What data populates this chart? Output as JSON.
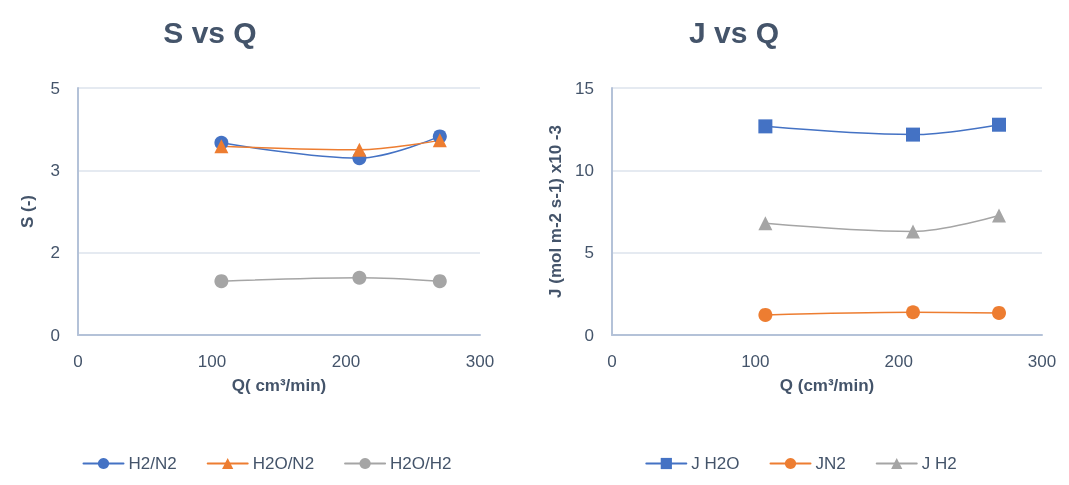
{
  "chart_data": [
    {
      "type": "line",
      "title": "S vs Q",
      "xlabel": "Q( cm³/min)",
      "ylabel": "S (-)",
      "xlim": [
        0,
        300
      ],
      "xticks": [
        0,
        100,
        200,
        300
      ],
      "ylim": [
        0,
        5
      ],
      "yticks": [
        0,
        {
          "value": 1.667,
          "label": "2"
        },
        {
          "value": 3.333,
          "label": "3"
        },
        5
      ],
      "grid": "y",
      "legend": "bottom",
      "series": [
        {
          "name": "H2/N2",
          "color": "#4472c4",
          "marker": "circle",
          "x": [
            107,
            210,
            270
          ],
          "values": [
            3.89,
            3.58,
            4.02
          ]
        },
        {
          "name": "H2O/N2",
          "color": "#ed7d31",
          "marker": "triangle",
          "x": [
            107,
            210,
            270
          ],
          "values": [
            3.82,
            3.75,
            3.94
          ]
        },
        {
          "name": "H2O/H2",
          "color": "#a5a5a5",
          "marker": "circle",
          "x": [
            107,
            210,
            270
          ],
          "values": [
            1.09,
            1.16,
            1.09
          ]
        }
      ]
    },
    {
      "type": "line",
      "title": "J vs Q",
      "xlabel": "Q (cm³/min)",
      "ylabel": "J (mol m-2 s-1) x10 -3",
      "xlim": [
        0,
        300
      ],
      "xticks": [
        0,
        100,
        200,
        300
      ],
      "ylim": [
        0,
        15
      ],
      "yticks": [
        0,
        5,
        10,
        15
      ],
      "grid": "y",
      "legend": "bottom",
      "series": [
        {
          "name": "J H2O",
          "color": "#4472c4",
          "marker": "square",
          "x": [
            107,
            210,
            270
          ],
          "values": [
            12.67,
            12.17,
            12.77
          ]
        },
        {
          "name": "JN2",
          "color": "#ed7d31",
          "marker": "circle",
          "x": [
            107,
            210,
            270
          ],
          "values": [
            1.22,
            1.38,
            1.34
          ]
        },
        {
          "name": "J H2",
          "color": "#a5a5a5",
          "marker": "triangle",
          "x": [
            107,
            210,
            270
          ],
          "values": [
            6.79,
            6.29,
            7.26
          ]
        }
      ]
    }
  ]
}
